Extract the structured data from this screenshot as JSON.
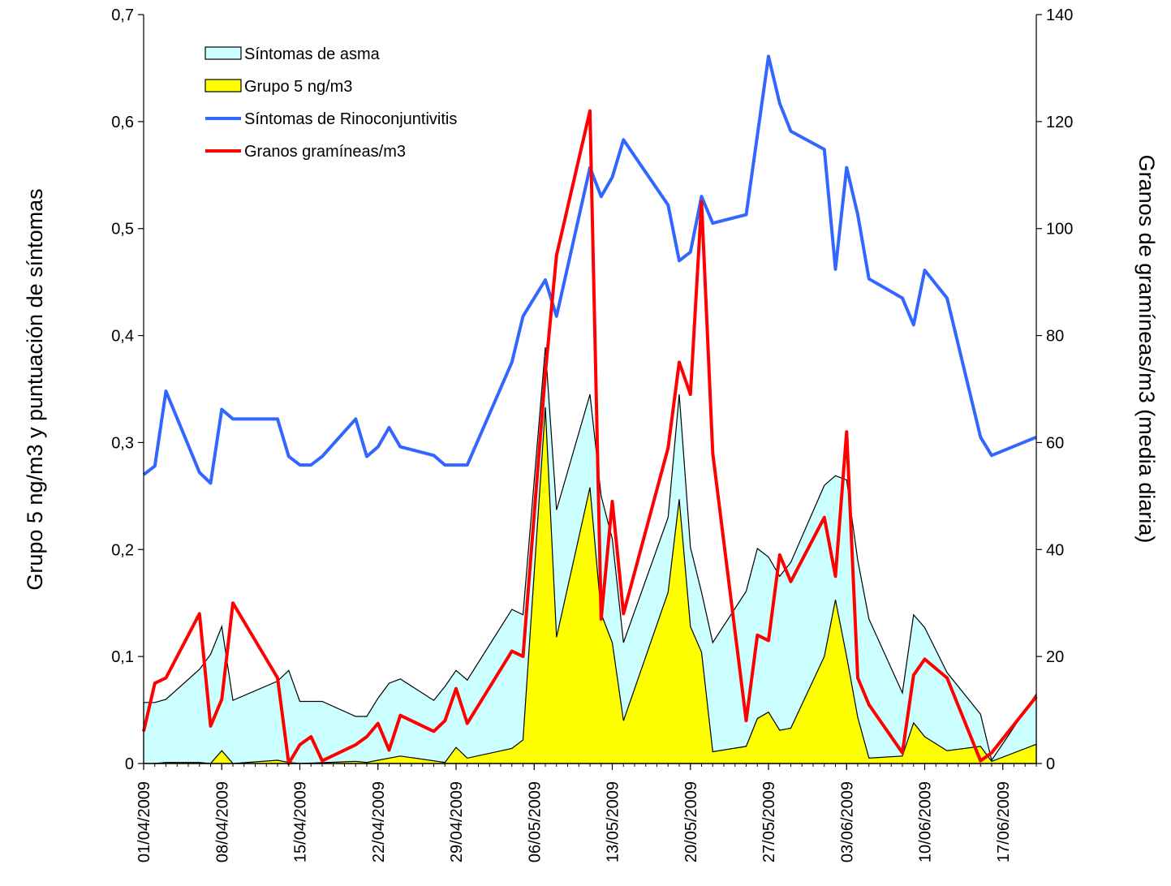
{
  "chart_data": {
    "type": "area",
    "x_start": "01/04/2009",
    "x_end": "20/06/2009",
    "x_tick_labels": [
      "01/04/2009",
      "08/04/2009",
      "15/04/2009",
      "22/04/2009",
      "29/04/2009",
      "06/05/2009",
      "13/05/2009",
      "20/05/2009",
      "27/05/2009",
      "03/06/2009",
      "10/06/2009",
      "17/06/2009"
    ],
    "y_left": {
      "label": "Grupo 5 ng/m3 y puntuación de síntomas",
      "min": 0,
      "max": 0.7,
      "tick_labels": [
        "0",
        "0,1",
        "0,2",
        "0,3",
        "0,4",
        "0,5",
        "0,6",
        "0,7"
      ]
    },
    "y_right": {
      "label": "Granos de gramíneas/m3 (media diaria)",
      "min": 0,
      "max": 140,
      "tick_labels": [
        "0",
        "20",
        "40",
        "60",
        "80",
        "100",
        "120",
        "140"
      ]
    },
    "legend": {
      "position": "top-left",
      "entries": [
        {
          "label": "Síntomas de asma",
          "kind": "area",
          "color": "#ccffff"
        },
        {
          "label": "Grupo 5 ng/m3",
          "kind": "area",
          "color": "#ffff00"
        },
        {
          "label": "Síntomas de Rinoconjuntivitis",
          "kind": "line",
          "color": "#3366ff"
        },
        {
          "label": "Granos gramíneas/m3",
          "kind": "line",
          "color": "#ff0000"
        }
      ]
    },
    "series": [
      {
        "name": "Síntomas de asma",
        "axis": "left",
        "style": "area",
        "color": "#ccffff",
        "points": [
          [
            "01/04/2009",
            0.057
          ],
          [
            "02/04/2009",
            0.057
          ],
          [
            "03/04/2009",
            0.06
          ],
          [
            "06/04/2009",
            0.088
          ],
          [
            "07/04/2009",
            0.102
          ],
          [
            "08/04/2009",
            0.128
          ],
          [
            "09/04/2009",
            0.059
          ],
          [
            "13/04/2009",
            0.077
          ],
          [
            "14/04/2009",
            0.087
          ],
          [
            "15/04/2009",
            0.058
          ],
          [
            "17/04/2009",
            0.058
          ],
          [
            "20/04/2009",
            0.044
          ],
          [
            "21/04/2009",
            0.044
          ],
          [
            "22/04/2009",
            0.061
          ],
          [
            "23/04/2009",
            0.075
          ],
          [
            "24/04/2009",
            0.079
          ],
          [
            "27/04/2009",
            0.059
          ],
          [
            "28/04/2009",
            0.072
          ],
          [
            "29/04/2009",
            0.087
          ],
          [
            "30/04/2009",
            0.078
          ],
          [
            "04/05/2009",
            0.144
          ],
          [
            "05/05/2009",
            0.139
          ],
          [
            "07/05/2009",
            0.389
          ],
          [
            "08/05/2009",
            0.237
          ],
          [
            "11/05/2009",
            0.345
          ],
          [
            "12/05/2009",
            0.25
          ],
          [
            "13/05/2009",
            0.21
          ],
          [
            "14/05/2009",
            0.113
          ],
          [
            "18/05/2009",
            0.23
          ],
          [
            "19/05/2009",
            0.345
          ],
          [
            "20/05/2009",
            0.202
          ],
          [
            "21/05/2009",
            0.16
          ],
          [
            "22/05/2009",
            0.113
          ],
          [
            "25/05/2009",
            0.161
          ],
          [
            "26/05/2009",
            0.201
          ],
          [
            "27/05/2009",
            0.193
          ],
          [
            "28/05/2009",
            0.175
          ],
          [
            "29/05/2009",
            0.188
          ],
          [
            "01/06/2009",
            0.26
          ],
          [
            "02/06/2009",
            0.269
          ],
          [
            "03/06/2009",
            0.265
          ],
          [
            "04/06/2009",
            0.19
          ],
          [
            "05/06/2009",
            0.135
          ],
          [
            "08/06/2009",
            0.066
          ],
          [
            "09/06/2009",
            0.139
          ],
          [
            "10/06/2009",
            0.127
          ],
          [
            "12/06/2009",
            0.085
          ],
          [
            "15/06/2009",
            0.046
          ],
          [
            "16/06/2009",
            0.003
          ],
          [
            "20/06/2009",
            0.065
          ]
        ]
      },
      {
        "name": "Grupo 5 ng/m3",
        "axis": "left",
        "style": "area",
        "color": "#ffff00",
        "points": [
          [
            "01/04/2009",
            0
          ],
          [
            "02/04/2009",
            0
          ],
          [
            "03/04/2009",
            0.001
          ],
          [
            "06/04/2009",
            0.001
          ],
          [
            "07/04/2009",
            0
          ],
          [
            "08/04/2009",
            0.012
          ],
          [
            "09/04/2009",
            0
          ],
          [
            "13/04/2009",
            0.003
          ],
          [
            "14/04/2009",
            0.001
          ],
          [
            "15/04/2009",
            0
          ],
          [
            "20/04/2009",
            0.002
          ],
          [
            "21/04/2009",
            0.001
          ],
          [
            "22/04/2009",
            0.003
          ],
          [
            "24/04/2009",
            0.007
          ],
          [
            "28/04/2009",
            0.001
          ],
          [
            "29/04/2009",
            0.015
          ],
          [
            "30/04/2009",
            0.005
          ],
          [
            "04/05/2009",
            0.014
          ],
          [
            "05/05/2009",
            0.022
          ],
          [
            "07/05/2009",
            0.333
          ],
          [
            "08/05/2009",
            0.118
          ],
          [
            "11/05/2009",
            0.258
          ],
          [
            "12/05/2009",
            0.14
          ],
          [
            "13/05/2009",
            0.113
          ],
          [
            "14/05/2009",
            0.04
          ],
          [
            "18/05/2009",
            0.16
          ],
          [
            "19/05/2009",
            0.247
          ],
          [
            "20/05/2009",
            0.128
          ],
          [
            "21/05/2009",
            0.104
          ],
          [
            "22/05/2009",
            0.011
          ],
          [
            "25/05/2009",
            0.016
          ],
          [
            "26/05/2009",
            0.042
          ],
          [
            "27/05/2009",
            0.048
          ],
          [
            "28/05/2009",
            0.031
          ],
          [
            "29/05/2009",
            0.033
          ],
          [
            "01/06/2009",
            0.1
          ],
          [
            "02/06/2009",
            0.153
          ],
          [
            "03/06/2009",
            0.1
          ],
          [
            "04/06/2009",
            0.043
          ],
          [
            "05/06/2009",
            0.005
          ],
          [
            "08/06/2009",
            0.007
          ],
          [
            "09/06/2009",
            0.038
          ],
          [
            "10/06/2009",
            0.025
          ],
          [
            "12/06/2009",
            0.012
          ],
          [
            "15/06/2009",
            0.016
          ],
          [
            "16/06/2009",
            0.002
          ],
          [
            "20/06/2009",
            0.018
          ]
        ]
      },
      {
        "name": "Síntomas de Rinoconjuntivitis",
        "axis": "left",
        "style": "line",
        "color": "#3366ff",
        "points": [
          [
            "01/04/2009",
            0.27
          ],
          [
            "02/04/2009",
            0.278
          ],
          [
            "03/04/2009",
            0.348
          ],
          [
            "06/04/2009",
            0.272
          ],
          [
            "07/04/2009",
            0.262
          ],
          [
            "08/04/2009",
            0.331
          ],
          [
            "09/04/2009",
            0.322
          ],
          [
            "13/04/2009",
            0.322
          ],
          [
            "14/04/2009",
            0.287
          ],
          [
            "15/04/2009",
            0.279
          ],
          [
            "16/04/2009",
            0.279
          ],
          [
            "17/04/2009",
            0.287
          ],
          [
            "20/04/2009",
            0.322
          ],
          [
            "21/04/2009",
            0.287
          ],
          [
            "22/04/2009",
            0.296
          ],
          [
            "23/04/2009",
            0.314
          ],
          [
            "24/04/2009",
            0.296
          ],
          [
            "27/04/2009",
            0.288
          ],
          [
            "28/04/2009",
            0.279
          ],
          [
            "29/04/2009",
            0.279
          ],
          [
            "30/04/2009",
            0.279
          ],
          [
            "04/05/2009",
            0.375
          ],
          [
            "05/05/2009",
            0.418
          ],
          [
            "07/05/2009",
            0.452
          ],
          [
            "08/05/2009",
            0.418
          ],
          [
            "11/05/2009",
            0.557
          ],
          [
            "12/05/2009",
            0.53
          ],
          [
            "13/05/2009",
            0.548
          ],
          [
            "14/05/2009",
            0.583
          ],
          [
            "18/05/2009",
            0.522
          ],
          [
            "19/05/2009",
            0.47
          ],
          [
            "20/05/2009",
            0.478
          ],
          [
            "21/05/2009",
            0.53
          ],
          [
            "22/05/2009",
            0.505
          ],
          [
            "25/05/2009",
            0.513
          ],
          [
            "27/05/2009",
            0.661
          ],
          [
            "28/05/2009",
            0.617
          ],
          [
            "29/05/2009",
            0.591
          ],
          [
            "01/06/2009",
            0.574
          ],
          [
            "02/06/2009",
            0.462
          ],
          [
            "03/06/2009",
            0.557
          ],
          [
            "04/06/2009",
            0.513
          ],
          [
            "05/06/2009",
            0.453
          ],
          [
            "08/06/2009",
            0.435
          ],
          [
            "09/06/2009",
            0.41
          ],
          [
            "10/06/2009",
            0.461
          ],
          [
            "12/06/2009",
            0.435
          ],
          [
            "15/06/2009",
            0.305
          ],
          [
            "16/06/2009",
            0.288
          ],
          [
            "20/06/2009",
            0.305
          ]
        ]
      },
      {
        "name": "Granos gramíneas/m3",
        "axis": "right",
        "style": "line",
        "color": "#ff0000",
        "points": [
          [
            "01/04/2009",
            6
          ],
          [
            "02/04/2009",
            15
          ],
          [
            "03/04/2009",
            16
          ],
          [
            "06/04/2009",
            28
          ],
          [
            "07/04/2009",
            7
          ],
          [
            "08/04/2009",
            12
          ],
          [
            "09/04/2009",
            30
          ],
          [
            "13/04/2009",
            16
          ],
          [
            "14/04/2009",
            0
          ],
          [
            "15/04/2009",
            3.5
          ],
          [
            "16/04/2009",
            5
          ],
          [
            "17/04/2009",
            0.5
          ],
          [
            "20/04/2009",
            3.5
          ],
          [
            "21/04/2009",
            5
          ],
          [
            "22/04/2009",
            7.5
          ],
          [
            "23/04/2009",
            2.5
          ],
          [
            "24/04/2009",
            9
          ],
          [
            "27/04/2009",
            6
          ],
          [
            "28/04/2009",
            8
          ],
          [
            "29/04/2009",
            14
          ],
          [
            "30/04/2009",
            7.5
          ],
          [
            "04/05/2009",
            21
          ],
          [
            "05/05/2009",
            20
          ],
          [
            "07/05/2009",
            73
          ],
          [
            "08/05/2009",
            95
          ],
          [
            "11/05/2009",
            122
          ],
          [
            "12/05/2009",
            27
          ],
          [
            "13/05/2009",
            49
          ],
          [
            "14/05/2009",
            28
          ],
          [
            "18/05/2009",
            59
          ],
          [
            "19/05/2009",
            75
          ],
          [
            "20/05/2009",
            69
          ],
          [
            "21/05/2009",
            105
          ],
          [
            "22/05/2009",
            58
          ],
          [
            "25/05/2009",
            8
          ],
          [
            "26/05/2009",
            24
          ],
          [
            "27/05/2009",
            23
          ],
          [
            "28/05/2009",
            39
          ],
          [
            "29/05/2009",
            34
          ],
          [
            "01/06/2009",
            46
          ],
          [
            "02/06/2009",
            35
          ],
          [
            "03/06/2009",
            62
          ],
          [
            "04/06/2009",
            16
          ],
          [
            "05/06/2009",
            11
          ],
          [
            "08/06/2009",
            2
          ],
          [
            "09/06/2009",
            16.5
          ],
          [
            "10/06/2009",
            19.5
          ],
          [
            "12/06/2009",
            16
          ],
          [
            "15/06/2009",
            0.5
          ],
          [
            "16/06/2009",
            2
          ],
          [
            "20/06/2009",
            12.5
          ]
        ]
      }
    ]
  }
}
